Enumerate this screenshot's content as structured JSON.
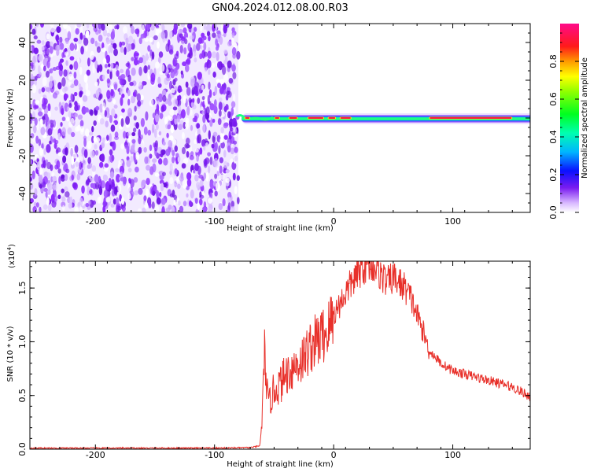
{
  "figure": {
    "title": "GN04.2024.012.08.00.R03"
  },
  "chart_data": [
    {
      "type": "heatmap",
      "title": "GN04.2024.012.08.00.R03",
      "xlabel": "Height of straight line (km)",
      "ylabel": "Frequency (Hz)",
      "xlim": [
        -255,
        165
      ],
      "ylim": [
        -50,
        50
      ],
      "x_ticks": [
        -200,
        -100,
        0,
        100
      ],
      "y_ticks": [
        -40,
        -20,
        0,
        20,
        40
      ],
      "colorbar": {
        "label": "Normalized spectral amplitude",
        "range": [
          0.0,
          1.0
        ],
        "ticks": [
          0.0,
          0.2,
          0.4,
          0.6,
          0.8
        ],
        "tick_labels": [
          "0.0",
          "0.2",
          "0.4",
          "0.6",
          "0.8"
        ]
      },
      "regions": [
        {
          "x_range": [
            -255,
            -80
          ],
          "y_range": [
            -50,
            50
          ],
          "pattern": "broadband noise",
          "amplitude_range": [
            0.0,
            0.15
          ]
        },
        {
          "x_range": [
            -80,
            165
          ],
          "frequency_center": 0,
          "pattern": "narrowband line",
          "peak_amplitude": 0.9
        }
      ]
    },
    {
      "type": "line",
      "xlabel": "Height of straight line (km)",
      "ylabel": "SNR (10 * v/v)",
      "y_scale_label": "(x10",
      "y_scale_exponent": "4",
      "y_scale_suffix": ")",
      "xlim": [
        -255,
        165
      ],
      "ylim": [
        0,
        1.75
      ],
      "x_ticks": [
        -200,
        -100,
        0,
        100
      ],
      "y_ticks": [
        0.0,
        0.5,
        1.0,
        1.5
      ],
      "y_tick_labels": [
        "0.0",
        "0.5",
        "1.0",
        "1.5"
      ],
      "line_color": "#e8302a",
      "x": [
        -255,
        -220,
        -180,
        -140,
        -100,
        -70,
        -62,
        -60,
        -58,
        -55,
        -50,
        -45,
        -40,
        -35,
        -30,
        -25,
        -20,
        -15,
        -10,
        -5,
        0,
        5,
        10,
        15,
        20,
        25,
        30,
        35,
        40,
        45,
        50,
        55,
        60,
        65,
        70,
        75,
        80,
        90,
        100,
        110,
        120,
        130,
        140,
        150,
        160,
        165
      ],
      "y": [
        0.01,
        0.01,
        0.01,
        0.01,
        0.01,
        0.015,
        0.03,
        0.3,
        0.9,
        0.4,
        0.55,
        0.6,
        0.7,
        0.75,
        0.8,
        0.85,
        0.95,
        1.0,
        1.05,
        1.1,
        1.25,
        1.35,
        1.45,
        1.55,
        1.62,
        1.7,
        1.72,
        1.7,
        1.62,
        1.55,
        1.6,
        1.55,
        1.5,
        1.4,
        1.25,
        1.1,
        0.92,
        0.8,
        0.73,
        0.7,
        0.67,
        0.64,
        0.61,
        0.58,
        0.52,
        0.49
      ]
    }
  ]
}
